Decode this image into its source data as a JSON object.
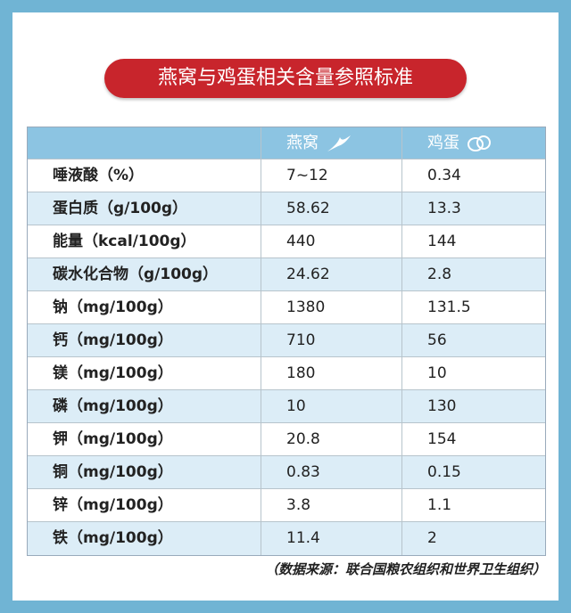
{
  "title": "燕窝与鸡蛋相关含量参照标准",
  "table": {
    "header": [
      "燕窝",
      "鸡蛋"
    ],
    "rows": [
      [
        "唾液酸（%）",
        "7~12",
        0.34
      ],
      [
        "蛋白质（g/100g）",
        58.62,
        13.3
      ],
      [
        "能量（kcal/100g）",
        440,
        144
      ],
      [
        "碳水化合物（g/100g）",
        24.62,
        2.8
      ],
      [
        "钠（mg/100g）",
        1380,
        131.5
      ],
      [
        "钙（mg/100g）",
        710,
        56
      ],
      [
        "镁（mg/100g）",
        180,
        10
      ],
      [
        "磷（mg/100g）",
        10,
        130
      ],
      [
        "钾（mg/100g）",
        20.8,
        154
      ],
      [
        "铜（mg/100g）",
        0.83,
        0.15
      ],
      [
        "锌（mg/100g）",
        3.8,
        1.1
      ],
      [
        "铁（mg/100g）",
        11.4,
        2
      ]
    ]
  },
  "source": "（数据来源：联合国粮农组织和世界卫生组织）"
}
